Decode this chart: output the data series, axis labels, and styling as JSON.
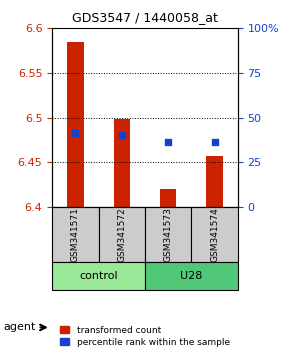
{
  "title": "GDS3547 / 1440058_at",
  "samples": [
    "GSM341571",
    "GSM341572",
    "GSM341573",
    "GSM341574"
  ],
  "groups": [
    "control",
    "control",
    "U28",
    "U28"
  ],
  "red_values": [
    6.585,
    6.498,
    6.42,
    6.457
  ],
  "red_base": 6.4,
  "blue_values": [
    6.483,
    6.48,
    6.473,
    6.473
  ],
  "ylim_left": [
    6.4,
    6.6
  ],
  "ylim_right": [
    0,
    100
  ],
  "yticks_left": [
    6.4,
    6.45,
    6.5,
    6.55,
    6.6
  ],
  "yticks_right": [
    0,
    25,
    50,
    75,
    100
  ],
  "ytick_labels_right": [
    "0",
    "25",
    "50",
    "75",
    "100%"
  ],
  "group_colors": {
    "control": "#90EE90",
    "U28": "#50C850"
  },
  "bar_color": "#CC2200",
  "dot_color": "#1144CC",
  "left_tick_color": "#CC2200",
  "right_tick_color": "#1144CC",
  "legend_red": "transformed count",
  "legend_blue": "percentile rank within the sample",
  "agent_label": "agent",
  "background_plot": "#FFFFFF",
  "sample_box_color": "#CCCCCC"
}
